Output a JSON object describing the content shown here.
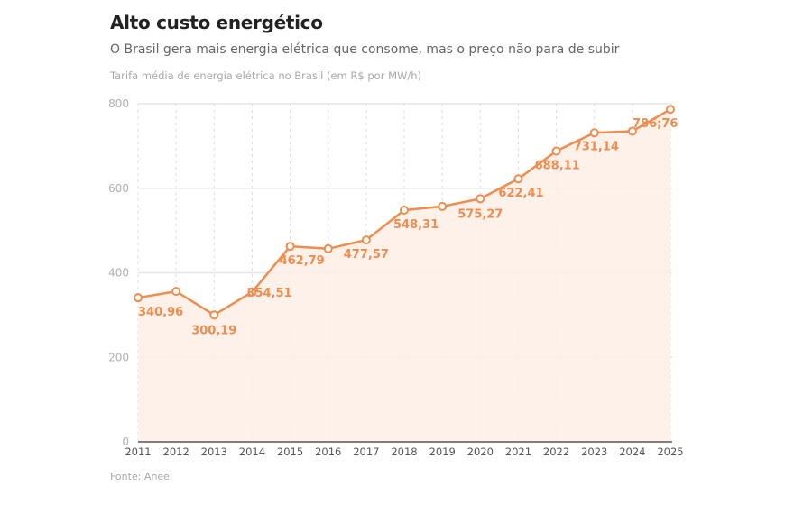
{
  "chart_data": {
    "type": "area",
    "title": "Alto custo energético",
    "subtitle": "O Brasil gera mais energia elétrica que consome, mas o preço não para de subir",
    "ylabel": "Tarifa média de energia elétrica no Brasil (em R$ por MW/h)",
    "xlabel": "",
    "source": "Fonte: Aneel",
    "x": [
      2011,
      2012,
      2013,
      2014,
      2015,
      2016,
      2017,
      2018,
      2019,
      2020,
      2021,
      2022,
      2023,
      2024,
      2025
    ],
    "x_tick_labels": [
      "2011",
      "2012",
      "2013",
      "2014",
      "2015",
      "2016",
      "2017",
      "2018",
      "2019",
      "2020",
      "2021",
      "2022",
      "2023",
      "2024",
      "2025"
    ],
    "values": [
      340.96,
      356,
      300.19,
      354.51,
      462.79,
      457,
      477.57,
      548.31,
      557,
      575.27,
      622.41,
      688.11,
      731.14,
      735,
      786.76
    ],
    "data_labels": [
      "340,96",
      "",
      "300,19",
      "354,51",
      "462,79",
      "",
      "477,57",
      "548,31",
      "",
      "575,27",
      "622,41",
      "688,11",
      "731,14",
      "",
      "786;76"
    ],
    "ylim": [
      0,
      800
    ],
    "y_ticks": [
      0,
      200,
      400,
      600,
      800
    ],
    "y_tick_labels": [
      "0",
      "200",
      "400",
      "600",
      "800"
    ],
    "grid": true,
    "legend": "none",
    "colors": {
      "line": "#ee8d4f",
      "fill": "#fdeee6",
      "grid": "#e6e6e6",
      "axis": "#555555"
    }
  }
}
